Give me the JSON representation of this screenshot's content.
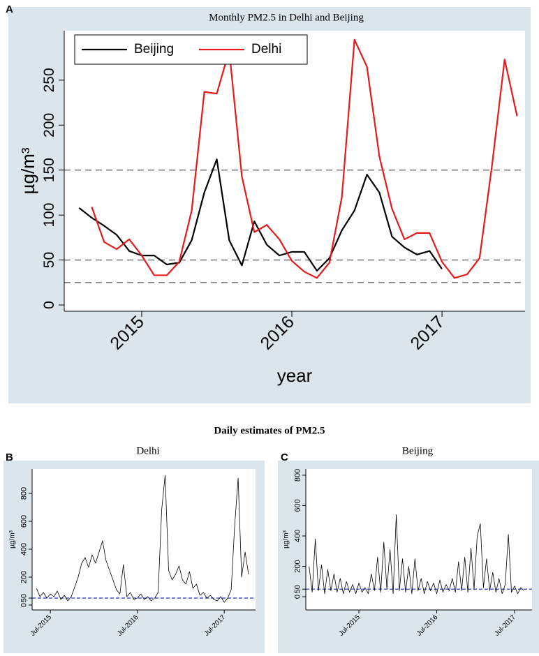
{
  "daily_heading": "Daily estimates of PM2.5",
  "chart_data": [
    {
      "type": "line",
      "panel": "A",
      "title": "Monthly PM2.5 in Delhi and Beijing",
      "xlabel": "year",
      "ylabel": "µg/m³",
      "xlim": [
        2014.484,
        2017.553
      ],
      "xticks": [
        2015,
        2016,
        2017
      ],
      "ylim": [
        -7,
        305
      ],
      "yticks": [
        0,
        50,
        100,
        150,
        200,
        250
      ],
      "reference_lines": [
        150,
        50,
        25
      ],
      "reference_color": "#808080",
      "legend": "upper left",
      "series": [
        {
          "name": "Beijing",
          "color": "#000000",
          "x": [
            2014.583,
            2014.667,
            2014.75,
            2014.833,
            2014.917,
            2015,
            2015.083,
            2015.167,
            2015.25,
            2015.333,
            2015.417,
            2015.5,
            2015.583,
            2015.667,
            2015.75,
            2015.833,
            2015.917,
            2016,
            2016.083,
            2016.167,
            2016.25,
            2016.333,
            2016.417,
            2016.5,
            2016.583,
            2016.667,
            2016.75,
            2016.833,
            2016.917,
            2017
          ],
          "values": [
            108,
            97,
            88,
            78,
            60,
            55,
            55,
            45,
            47,
            72,
            125,
            162,
            72,
            44,
            93,
            67,
            55,
            59,
            59,
            38,
            52,
            83,
            105,
            145,
            125,
            76,
            64,
            56,
            60,
            40
          ]
        },
        {
          "name": "Delhi",
          "color": "#e41a1c",
          "x": [
            2014.667,
            2014.75,
            2014.833,
            2014.917,
            2015,
            2015.083,
            2015.167,
            2015.25,
            2015.333,
            2015.417,
            2015.5,
            2015.583,
            2015.667,
            2015.75,
            2015.833,
            2015.917,
            2016,
            2016.083,
            2016.167,
            2016.25,
            2016.333,
            2016.417,
            2016.5,
            2016.583,
            2016.667,
            2016.75,
            2016.833,
            2016.917,
            2017,
            2017.083,
            2017.167,
            2017.25,
            2017.333,
            2017.417,
            2017.5
          ],
          "values": [
            109,
            70,
            62,
            73,
            55,
            33,
            33,
            48,
            105,
            237,
            235,
            283,
            143,
            81,
            89,
            73,
            49,
            37,
            30,
            47,
            120,
            295,
            265,
            165,
            107,
            73,
            80,
            80,
            48,
            30,
            34,
            52,
            155,
            273,
            210
          ]
        }
      ]
    },
    {
      "type": "line",
      "panel": "B",
      "title": "Delhi",
      "ylabel": "µg/m³",
      "xlim": [
        2015.29,
        2017.86
      ],
      "xticks": [
        {
          "value": 2015.5,
          "label": "Jul-2015"
        },
        {
          "value": 2016.5,
          "label": "Jul-2016"
        },
        {
          "value": 2017.5,
          "label": "Jul-2017"
        }
      ],
      "ylim": [
        -35,
        975
      ],
      "yticks": [
        0,
        50,
        200,
        400,
        600,
        800
      ],
      "reference_lines": [
        50
      ],
      "reference_color": "#2a2ad0",
      "color": "#000000",
      "x": [
        2015.34,
        2015.38,
        2015.42,
        2015.46,
        2015.5,
        2015.54,
        2015.58,
        2015.62,
        2015.66,
        2015.7,
        2015.74,
        2015.78,
        2015.82,
        2015.86,
        2015.9,
        2015.94,
        2015.98,
        2016.02,
        2016.06,
        2016.1,
        2016.14,
        2016.18,
        2016.22,
        2016.26,
        2016.3,
        2016.34,
        2016.38,
        2016.42,
        2016.46,
        2016.5,
        2016.54,
        2016.58,
        2016.62,
        2016.66,
        2016.7,
        2016.74,
        2016.78,
        2016.82,
        2016.86,
        2016.9,
        2016.94,
        2016.98,
        2017.02,
        2017.06,
        2017.1,
        2017.14,
        2017.18,
        2017.22,
        2017.26,
        2017.3,
        2017.34,
        2017.38,
        2017.42,
        2017.46,
        2017.5,
        2017.54,
        2017.58,
        2017.62,
        2017.66,
        2017.7,
        2017.74,
        2017.78
      ],
      "values": [
        120,
        60,
        90,
        50,
        80,
        60,
        100,
        40,
        70,
        30,
        60,
        130,
        200,
        300,
        340,
        270,
        360,
        300,
        380,
        460,
        320,
        250,
        180,
        110,
        80,
        290,
        60,
        90,
        40,
        50,
        80,
        40,
        60,
        30,
        50,
        90,
        680,
        930,
        250,
        180,
        220,
        280,
        180,
        150,
        240,
        120,
        150,
        70,
        90,
        50,
        70,
        40,
        30,
        60,
        20,
        50,
        110,
        570,
        910,
        200,
        380,
        220
      ]
    },
    {
      "type": "line",
      "panel": "C",
      "title": "Beijing",
      "ylabel": "µg/m³",
      "xlim": [
        2014.818,
        2017.724
      ],
      "xticks": [
        {
          "value": 2015.5,
          "label": "Jul-2015"
        },
        {
          "value": 2016.5,
          "label": "Jul-2016"
        },
        {
          "value": 2017.5,
          "label": "Jul-2017"
        }
      ],
      "ylim": [
        -87,
        841
      ],
      "yticks": [
        0,
        50,
        200,
        400,
        600,
        800
      ],
      "reference_lines": [
        50
      ],
      "reference_color": "#2a2ad0",
      "color": "#000000",
      "x": [
        2014.86,
        2014.9,
        2014.94,
        2014.98,
        2015.02,
        2015.06,
        2015.1,
        2015.14,
        2015.18,
        2015.22,
        2015.26,
        2015.3,
        2015.34,
        2015.38,
        2015.42,
        2015.46,
        2015.5,
        2015.54,
        2015.58,
        2015.62,
        2015.66,
        2015.7,
        2015.74,
        2015.78,
        2015.82,
        2015.86,
        2015.9,
        2015.94,
        2015.98,
        2016.02,
        2016.06,
        2016.1,
        2016.14,
        2016.18,
        2016.22,
        2016.26,
        2016.3,
        2016.34,
        2016.38,
        2016.42,
        2016.46,
        2016.5,
        2016.54,
        2016.58,
        2016.62,
        2016.66,
        2016.7,
        2016.74,
        2016.78,
        2016.82,
        2016.86,
        2016.9,
        2016.94,
        2016.98,
        2017.02,
        2017.06,
        2017.1,
        2017.14,
        2017.18,
        2017.22,
        2017.26,
        2017.3,
        2017.34,
        2017.38,
        2017.42,
        2017.46,
        2017.5,
        2017.54,
        2017.58,
        2017.62
      ],
      "values": [
        200,
        30,
        380,
        40,
        210,
        20,
        180,
        40,
        150,
        30,
        120,
        20,
        100,
        30,
        80,
        20,
        90,
        30,
        60,
        20,
        150,
        40,
        260,
        30,
        360,
        50,
        310,
        20,
        540,
        40,
        250,
        30,
        200,
        20,
        250,
        40,
        120,
        20,
        100,
        40,
        90,
        20,
        110,
        30,
        80,
        40,
        120,
        30,
        230,
        40,
        260,
        30,
        320,
        50,
        400,
        480,
        60,
        250,
        40,
        160,
        30,
        120,
        20,
        80,
        410,
        30,
        70,
        20,
        60,
        40
      ]
    }
  ]
}
